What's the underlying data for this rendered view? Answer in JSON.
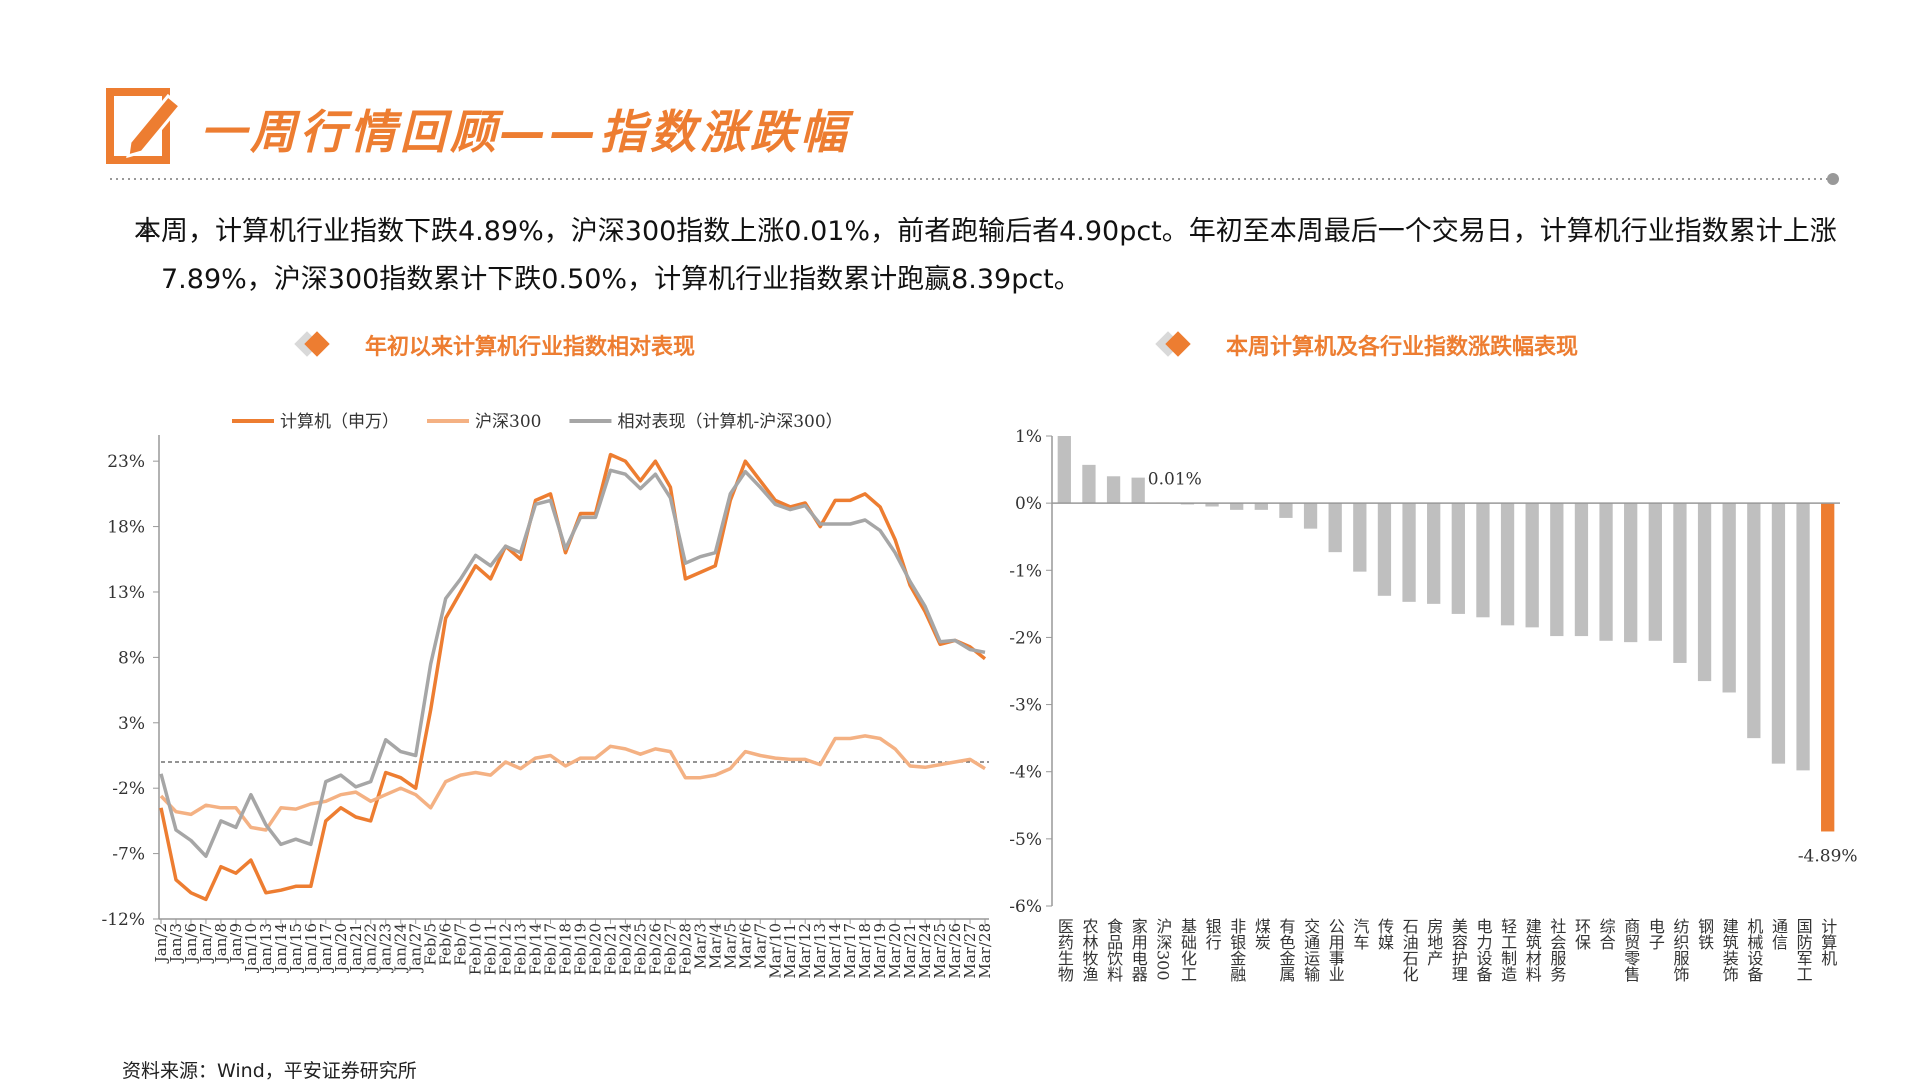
{
  "header": {
    "title": "一周行情回顾——指数涨跌幅"
  },
  "summary": "本周，计算机行业指数下跌4.89%，沪深300指数上涨0.01%，前者跑输后者4.90pct。年初至本周最后一个交易日，计算机行业指数累计上涨7.89%，沪深300指数累计下跌0.50%，计算机行业指数累计跑赢8.39pct。",
  "chart_data": [
    {
      "type": "line",
      "title": "年初以来计算机行业指数相对表现",
      "categories": [
        "Jan/2",
        "Jan/3",
        "Jan/6",
        "Jan/7",
        "Jan/8",
        "Jan/9",
        "Jan/10",
        "Jan/13",
        "Jan/14",
        "Jan/15",
        "Jan/16",
        "Jan/17",
        "Jan/20",
        "Jan/21",
        "Jan/22",
        "Jan/23",
        "Jan/24",
        "Jan/27",
        "Feb/5",
        "Feb/6",
        "Feb/7",
        "Feb/10",
        "Feb/11",
        "Feb/12",
        "Feb/13",
        "Feb/14",
        "Feb/17",
        "Feb/18",
        "Feb/19",
        "Feb/20",
        "Feb/21",
        "Feb/24",
        "Feb/25",
        "Feb/26",
        "Feb/27",
        "Feb/28",
        "Mar/3",
        "Mar/4",
        "Mar/5",
        "Mar/6",
        "Mar/7",
        "Mar/10",
        "Mar/11",
        "Mar/12",
        "Mar/13",
        "Mar/14",
        "Mar/17",
        "Mar/18",
        "Mar/19",
        "Mar/20",
        "Mar/21",
        "Mar/24",
        "Mar/25",
        "Mar/26",
        "Mar/27",
        "Mar/28"
      ],
      "series": [
        {
          "name": "计算机（申万）",
          "color": "#ed7d31",
          "values": [
            -3.5,
            -9,
            -10,
            -10.5,
            -8,
            -8.5,
            -7.5,
            -10,
            -9.8,
            -9.5,
            -9.5,
            -4.5,
            -3.5,
            -4.2,
            -4.5,
            -0.8,
            -1.2,
            -2.0,
            4,
            11,
            13,
            15,
            14,
            16.5,
            15.5,
            20,
            20.5,
            16,
            19,
            19,
            23.5,
            23,
            21.5,
            23,
            21,
            14,
            14.5,
            15,
            20,
            23,
            21.5,
            20,
            19.5,
            19.8,
            18,
            20,
            20,
            20.5,
            19.5,
            17,
            13.5,
            11.5,
            9,
            9.3,
            8.8,
            7.89
          ]
        },
        {
          "name": "沪深300",
          "color": "#f4b183",
          "values": [
            -2.6,
            -3.8,
            -4,
            -3.3,
            -3.5,
            -3.5,
            -5,
            -5.2,
            -3.5,
            -3.6,
            -3.2,
            -3,
            -2.5,
            -2.3,
            -3,
            -2.5,
            -2.0,
            -2.5,
            -3.5,
            -1.5,
            -1,
            -0.8,
            -1,
            0,
            -0.5,
            0.3,
            0.5,
            -0.3,
            0.3,
            0.3,
            1.2,
            1,
            0.6,
            1,
            0.8,
            -1.2,
            -1.2,
            -1.0,
            -0.5,
            0.8,
            0.5,
            0.3,
            0.2,
            0.2,
            -0.2,
            1.8,
            1.8,
            2.0,
            1.8,
            1.0,
            -0.3,
            -0.4,
            -0.2,
            0.0,
            0.2,
            -0.5
          ]
        },
        {
          "name": "相对表现（计算机-沪深300）",
          "color": "#a6a6a6",
          "values": [
            -0.9,
            -5.2,
            -6,
            -7.2,
            -4.5,
            -5,
            -2.5,
            -4.8,
            -6.3,
            -5.9,
            -6.3,
            -1.5,
            -1,
            -1.9,
            -1.5,
            1.7,
            0.8,
            0.5,
            7.5,
            12.5,
            14,
            15.8,
            15,
            16.5,
            16,
            19.7,
            20,
            16.3,
            18.7,
            18.7,
            22.3,
            22,
            20.9,
            22,
            20.2,
            15.2,
            15.7,
            16,
            20.5,
            22.2,
            21,
            19.7,
            19.3,
            19.6,
            18.2,
            18.2,
            18.2,
            18.5,
            17.7,
            16,
            13.8,
            11.9,
            9.2,
            9.3,
            8.6,
            8.39
          ]
        }
      ],
      "ylim": [
        -12,
        25
      ],
      "yticks": [
        {
          "value": 23,
          "label": "23%"
        },
        {
          "value": 18,
          "label": "18%"
        },
        {
          "value": 13,
          "label": "13%"
        },
        {
          "value": 8,
          "label": "8%"
        },
        {
          "value": 3,
          "label": "3%"
        },
        {
          "value": -2,
          "label": "-2%"
        },
        {
          "value": -7,
          "label": "-7%"
        },
        {
          "value": -12,
          "label": "-12%"
        }
      ],
      "legend": "top"
    },
    {
      "type": "bar",
      "title": "本周计算机及各行业指数涨跌幅表现",
      "categories": [
        "医药生物",
        "农林牧渔",
        "食品饮料",
        "家用电器",
        "沪深300",
        "基础化工",
        "银行",
        "非银金融",
        "煤炭",
        "有色金属",
        "交通运输",
        "公用事业",
        "汽车",
        "传媒",
        "石油石化",
        "房地产",
        "美容护理",
        "电力设备",
        "轻工制造",
        "建筑材料",
        "社会服务",
        "环保",
        "综合",
        "商贸零售",
        "电子",
        "纺织服饰",
        "钢铁",
        "建筑装饰",
        "机械设备",
        "通信",
        "国防军工",
        "计算机"
      ],
      "values": [
        1.0,
        0.57,
        0.4,
        0.38,
        0.01,
        -0.02,
        -0.05,
        -0.1,
        -0.1,
        -0.22,
        -0.38,
        -0.73,
        -1.02,
        -1.38,
        -1.47,
        -1.5,
        -1.65,
        -1.7,
        -1.82,
        -1.85,
        -1.98,
        -1.98,
        -2.05,
        -2.07,
        -2.05,
        -2.38,
        -2.65,
        -2.82,
        -3.5,
        -3.88,
        -3.98,
        -4.89
      ],
      "value_labels": [
        null,
        null,
        null,
        null,
        "0.01%",
        null,
        null,
        null,
        null,
        null,
        null,
        null,
        null,
        null,
        null,
        null,
        null,
        null,
        null,
        null,
        null,
        null,
        null,
        null,
        null,
        null,
        null,
        null,
        null,
        null,
        null,
        "-4.89%"
      ],
      "colors": [
        "#bfbfbf",
        "#bfbfbf",
        "#bfbfbf",
        "#bfbfbf",
        "#ed7d31",
        "#bfbfbf",
        "#bfbfbf",
        "#bfbfbf",
        "#bfbfbf",
        "#bfbfbf",
        "#bfbfbf",
        "#bfbfbf",
        "#bfbfbf",
        "#bfbfbf",
        "#bfbfbf",
        "#bfbfbf",
        "#bfbfbf",
        "#bfbfbf",
        "#bfbfbf",
        "#bfbfbf",
        "#bfbfbf",
        "#bfbfbf",
        "#bfbfbf",
        "#bfbfbf",
        "#bfbfbf",
        "#bfbfbf",
        "#bfbfbf",
        "#bfbfbf",
        "#bfbfbf",
        "#bfbfbf",
        "#bfbfbf",
        "#ed7d31"
      ],
      "ylim": [
        -6,
        1
      ],
      "yticks": [
        {
          "value": 1,
          "label": "1%"
        },
        {
          "value": 0,
          "label": "0%"
        },
        {
          "value": -1,
          "label": "-1%"
        },
        {
          "value": -2,
          "label": "-2%"
        },
        {
          "value": -3,
          "label": "-3%"
        },
        {
          "value": -4,
          "label": "-4%"
        },
        {
          "value": -5,
          "label": "-5%"
        },
        {
          "value": -6,
          "label": "-6%"
        }
      ]
    }
  ],
  "source": "资料来源：Wind，平安证券研究所"
}
